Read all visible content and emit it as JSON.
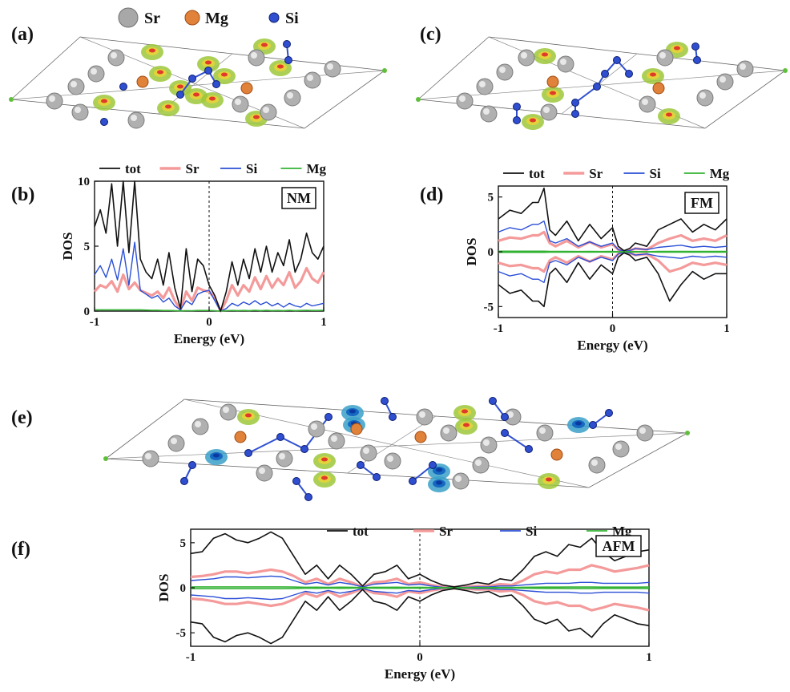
{
  "panel_labels": {
    "a": "(a)",
    "b": "(b)",
    "c": "(c)",
    "d": "(d)",
    "e": "(e)",
    "f": "(f)"
  },
  "structure_legend": [
    {
      "label": "Sr",
      "color": "#9e9e9e"
    },
    {
      "label": "Mg",
      "color": "#e07a2a"
    },
    {
      "label": "Si",
      "color": "#2f4fd0"
    }
  ],
  "colors": {
    "tot": "#111111",
    "Sr": "#f49a9a",
    "Si": "#2b4fd6",
    "Mg": "#33b233"
  },
  "chart_data": [
    {
      "id": "b",
      "type": "line",
      "state_label": "NM",
      "xlabel": "Energy (eV)",
      "ylabel": "DOS",
      "xlim": [
        -1,
        1
      ],
      "ylim": [
        0,
        10
      ],
      "xticks": [
        "-1",
        "0",
        "1"
      ],
      "yticks": [
        "0",
        "5",
        "10"
      ],
      "fermi_line": 0,
      "legend": [
        "tot",
        "Sr",
        "Si",
        "Mg"
      ],
      "x": [
        -1.0,
        -0.95,
        -0.9,
        -0.85,
        -0.8,
        -0.75,
        -0.7,
        -0.65,
        -0.6,
        -0.55,
        -0.5,
        -0.45,
        -0.4,
        -0.35,
        -0.3,
        -0.25,
        -0.2,
        -0.15,
        -0.1,
        -0.05,
        0.0,
        0.05,
        0.1,
        0.15,
        0.2,
        0.25,
        0.3,
        0.35,
        0.4,
        0.45,
        0.5,
        0.55,
        0.6,
        0.65,
        0.7,
        0.75,
        0.8,
        0.85,
        0.9,
        0.95,
        1.0
      ],
      "series": [
        {
          "name": "tot",
          "values": [
            6.5,
            7.8,
            6.0,
            9.8,
            5.0,
            10.0,
            4.5,
            10.0,
            4.0,
            3.0,
            2.5,
            4.0,
            2.0,
            4.5,
            1.8,
            0.2,
            4.8,
            1.5,
            4.0,
            3.5,
            2.0,
            1.2,
            0.0,
            1.5,
            3.8,
            2.0,
            4.0,
            2.5,
            4.8,
            3.0,
            5.0,
            3.0,
            4.5,
            3.5,
            5.5,
            3.0,
            4.0,
            6.0,
            4.5,
            4.0,
            5.0
          ]
        },
        {
          "name": "Sr",
          "values": [
            1.5,
            2.0,
            1.8,
            2.3,
            1.5,
            2.8,
            1.7,
            2.2,
            1.6,
            1.4,
            1.2,
            1.5,
            1.0,
            1.8,
            0.8,
            0.1,
            1.5,
            0.8,
            1.8,
            1.6,
            1.5,
            1.0,
            0.0,
            0.8,
            2.0,
            1.2,
            2.0,
            1.5,
            2.6,
            1.7,
            2.7,
            1.8,
            2.5,
            2.0,
            3.0,
            1.8,
            2.3,
            3.3,
            2.5,
            2.2,
            3.0
          ]
        },
        {
          "name": "Si",
          "values": [
            2.8,
            3.5,
            2.6,
            4.0,
            2.4,
            4.8,
            2.0,
            5.3,
            1.6,
            1.3,
            1.0,
            1.2,
            0.7,
            1.0,
            0.4,
            0.1,
            0.8,
            0.5,
            1.3,
            1.5,
            1.6,
            0.8,
            0.0,
            0.2,
            0.6,
            0.4,
            0.7,
            0.5,
            0.8,
            0.5,
            0.7,
            0.4,
            0.6,
            0.3,
            0.6,
            0.4,
            0.3,
            0.6,
            0.4,
            0.5,
            0.6
          ]
        },
        {
          "name": "Mg",
          "values": [
            0.1,
            0.1,
            0.1,
            0.1,
            0.1,
            0.1,
            0.1,
            0.1,
            0.1,
            0.08,
            0.07,
            0.07,
            0.05,
            0.05,
            0.04,
            0.02,
            0.04,
            0.03,
            0.05,
            0.05,
            0.05,
            0.03,
            0.0,
            0.03,
            0.05,
            0.04,
            0.05,
            0.04,
            0.06,
            0.04,
            0.06,
            0.04,
            0.05,
            0.04,
            0.06,
            0.04,
            0.05,
            0.06,
            0.05,
            0.05,
            0.06
          ]
        }
      ]
    },
    {
      "id": "d",
      "type": "line",
      "state_label": "FM",
      "xlabel": "Energy (eV)",
      "ylabel": "DOS",
      "xlim": [
        -1,
        1
      ],
      "ylim": [
        -6,
        6
      ],
      "xticks": [
        "-1",
        "0",
        "1"
      ],
      "yticks": [
        "-5",
        "0",
        "5"
      ],
      "fermi_line": 0,
      "legend": [
        "tot",
        "Sr",
        "Si",
        "Mg"
      ],
      "x": [
        -1.0,
        -0.9,
        -0.8,
        -0.7,
        -0.65,
        -0.6,
        -0.55,
        -0.5,
        -0.4,
        -0.3,
        -0.2,
        -0.1,
        0.0,
        0.05,
        0.1,
        0.15,
        0.2,
        0.3,
        0.4,
        0.5,
        0.6,
        0.7,
        0.8,
        0.9,
        1.0
      ],
      "series": [
        {
          "name": "tot",
          "values": [
            3.0,
            3.8,
            3.5,
            4.5,
            4.5,
            5.8,
            2.0,
            1.5,
            2.8,
            1.0,
            2.5,
            1.2,
            2.2,
            0.5,
            0.1,
            0.3,
            0.8,
            0.5,
            2.0,
            2.5,
            3.0,
            1.8,
            2.5,
            2.0,
            3.0
          ]
        },
        {
          "name": "tot_spin_down",
          "values": [
            -3.0,
            -3.8,
            -3.5,
            -4.5,
            -4.5,
            -5.0,
            -2.0,
            -1.5,
            -2.8,
            -1.0,
            -2.5,
            -1.2,
            -2.0,
            -0.5,
            -0.1,
            -0.3,
            -0.8,
            -0.5,
            -2.0,
            -4.5,
            -3.0,
            -1.8,
            -2.5,
            -2.0,
            -2.0
          ]
        },
        {
          "name": "Sr",
          "values": [
            1.0,
            1.3,
            1.2,
            1.5,
            1.5,
            1.8,
            0.8,
            0.5,
            1.0,
            0.4,
            0.9,
            0.4,
            0.7,
            0.2,
            0.05,
            0.1,
            0.3,
            0.2,
            0.8,
            1.2,
            1.5,
            1.0,
            1.2,
            1.0,
            1.5
          ]
        },
        {
          "name": "Sr_spin_down",
          "values": [
            -1.0,
            -1.3,
            -1.2,
            -1.5,
            -1.5,
            -1.8,
            -0.8,
            -0.5,
            -1.0,
            -0.4,
            -0.9,
            -0.4,
            -0.7,
            -0.2,
            -0.05,
            -0.1,
            -0.3,
            -0.2,
            -0.8,
            -1.8,
            -1.5,
            -1.0,
            -1.2,
            -1.0,
            -1.2
          ]
        },
        {
          "name": "Si",
          "values": [
            1.8,
            2.2,
            2.0,
            2.5,
            2.5,
            2.8,
            1.0,
            0.8,
            1.2,
            0.5,
            0.9,
            0.5,
            0.8,
            0.2,
            0.05,
            0.1,
            0.3,
            0.2,
            0.4,
            0.5,
            0.6,
            0.4,
            0.5,
            0.4,
            0.5
          ]
        },
        {
          "name": "Si_spin_down",
          "values": [
            -1.8,
            -2.2,
            -2.0,
            -2.5,
            -2.5,
            -2.8,
            -1.0,
            -0.8,
            -1.2,
            -0.5,
            -0.9,
            -0.5,
            -0.8,
            -0.2,
            -0.05,
            -0.1,
            -0.3,
            -0.2,
            -0.4,
            -0.5,
            -0.6,
            -0.4,
            -0.5,
            -0.4,
            -0.5
          ]
        },
        {
          "name": "Mg",
          "values": [
            0.05,
            0.05,
            0.05,
            0.05,
            0.05,
            0.05,
            0.04,
            0.03,
            0.04,
            0.02,
            0.03,
            0.02,
            0.03,
            0.01,
            0.0,
            0.01,
            0.02,
            0.01,
            0.03,
            0.04,
            0.04,
            0.03,
            0.04,
            0.03,
            0.04
          ]
        }
      ]
    },
    {
      "id": "f",
      "type": "line",
      "state_label": "AFM",
      "xlabel": "Energy (eV)",
      "ylabel": "DOS",
      "xlim": [
        -1,
        1
      ],
      "ylim": [
        -6.5,
        6.5
      ],
      "xticks": [
        "-1",
        "0",
        "1"
      ],
      "yticks": [
        "-5",
        "0",
        "5"
      ],
      "fermi_line": 0,
      "legend": [
        "tot",
        "Sr",
        "Si",
        "Mg"
      ],
      "symmetric_spin": true,
      "x": [
        -1.0,
        -0.95,
        -0.9,
        -0.85,
        -0.8,
        -0.75,
        -0.7,
        -0.65,
        -0.6,
        -0.55,
        -0.5,
        -0.45,
        -0.4,
        -0.35,
        -0.3,
        -0.25,
        -0.2,
        -0.15,
        -0.1,
        -0.05,
        0.0,
        0.05,
        0.1,
        0.15,
        0.2,
        0.25,
        0.3,
        0.35,
        0.4,
        0.45,
        0.5,
        0.55,
        0.6,
        0.65,
        0.7,
        0.75,
        0.8,
        0.85,
        0.9,
        0.95,
        1.0
      ],
      "series": [
        {
          "name": "tot",
          "values": [
            3.8,
            4.0,
            5.5,
            6.0,
            5.3,
            5.0,
            5.5,
            6.2,
            5.5,
            3.5,
            1.5,
            2.5,
            1.0,
            2.5,
            1.5,
            0.2,
            1.5,
            1.8,
            2.5,
            1.0,
            1.5,
            0.8,
            0.3,
            0.1,
            0.3,
            0.6,
            0.4,
            1.0,
            0.8,
            2.0,
            3.5,
            4.0,
            3.5,
            4.8,
            4.5,
            5.5,
            4.0,
            3.0,
            3.5,
            4.0,
            4.2
          ]
        },
        {
          "name": "Sr",
          "values": [
            1.2,
            1.3,
            1.5,
            1.8,
            1.8,
            1.6,
            1.8,
            2.0,
            1.8,
            1.3,
            0.6,
            1.0,
            0.4,
            1.0,
            0.6,
            0.1,
            0.6,
            0.7,
            1.0,
            0.4,
            0.6,
            0.3,
            0.1,
            0.05,
            0.1,
            0.2,
            0.2,
            0.4,
            0.3,
            0.8,
            1.5,
            1.8,
            1.6,
            2.0,
            2.0,
            2.5,
            2.2,
            1.8,
            2.0,
            2.2,
            2.5
          ]
        },
        {
          "name": "Si",
          "values": [
            0.8,
            0.9,
            1.0,
            1.2,
            1.2,
            1.1,
            1.2,
            1.3,
            1.2,
            0.8,
            0.4,
            0.6,
            0.3,
            0.6,
            0.4,
            0.1,
            0.4,
            0.5,
            0.6,
            0.3,
            0.4,
            0.2,
            0.05,
            0.03,
            0.05,
            0.1,
            0.1,
            0.2,
            0.2,
            0.3,
            0.4,
            0.5,
            0.5,
            0.5,
            0.6,
            0.6,
            0.5,
            0.5,
            0.5,
            0.5,
            0.6
          ]
        },
        {
          "name": "Mg",
          "values": [
            0.1,
            0.1,
            0.1,
            0.1,
            0.1,
            0.1,
            0.1,
            0.1,
            0.1,
            0.08,
            0.05,
            0.06,
            0.04,
            0.06,
            0.05,
            0.02,
            0.05,
            0.05,
            0.06,
            0.04,
            0.05,
            0.03,
            0.01,
            0.0,
            0.01,
            0.02,
            0.02,
            0.03,
            0.03,
            0.05,
            0.06,
            0.07,
            0.07,
            0.08,
            0.08,
            0.08,
            0.07,
            0.07,
            0.07,
            0.07,
            0.08
          ]
        }
      ]
    }
  ]
}
